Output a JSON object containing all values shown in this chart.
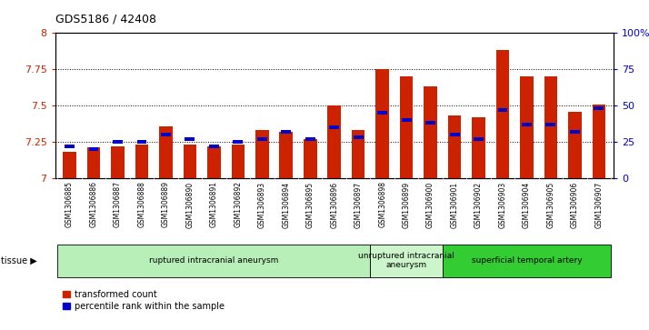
{
  "title": "GDS5186 / 42408",
  "samples": [
    "GSM1306885",
    "GSM1306886",
    "GSM1306887",
    "GSM1306888",
    "GSM1306889",
    "GSM1306890",
    "GSM1306891",
    "GSM1306892",
    "GSM1306893",
    "GSM1306894",
    "GSM1306895",
    "GSM1306896",
    "GSM1306897",
    "GSM1306898",
    "GSM1306899",
    "GSM1306900",
    "GSM1306901",
    "GSM1306902",
    "GSM1306903",
    "GSM1306904",
    "GSM1306905",
    "GSM1306906",
    "GSM1306907"
  ],
  "red_values": [
    7.18,
    7.21,
    7.22,
    7.23,
    7.36,
    7.23,
    7.22,
    7.23,
    7.33,
    7.32,
    7.27,
    7.5,
    7.33,
    7.75,
    7.7,
    7.63,
    7.43,
    7.42,
    7.88,
    7.7,
    7.7,
    7.46,
    7.51
  ],
  "blue_values": [
    22,
    20,
    25,
    25,
    30,
    27,
    22,
    25,
    27,
    32,
    27,
    35,
    28,
    45,
    40,
    38,
    30,
    27,
    47,
    37,
    37,
    32,
    48
  ],
  "ylim_left": [
    7.0,
    8.0
  ],
  "ylim_right": [
    0,
    100
  ],
  "yticks_left": [
    7.0,
    7.25,
    7.5,
    7.75,
    8.0
  ],
  "ytick_labels_left": [
    "7",
    "7.25",
    "7.5",
    "7.75",
    "8"
  ],
  "yticks_right": [
    0,
    25,
    50,
    75,
    100
  ],
  "ytick_labels_right": [
    "0",
    "25",
    "50",
    "75",
    "100%"
  ],
  "groups": [
    {
      "label": "ruptured intracranial aneurysm",
      "start": 0,
      "end": 13,
      "color": "#b8eeb8"
    },
    {
      "label": "unruptured intracranial\naneurysm",
      "start": 13,
      "end": 16,
      "color": "#ccf5cc"
    },
    {
      "label": "superficial temporal artery",
      "start": 16,
      "end": 23,
      "color": "#33cc33"
    }
  ],
  "bar_color_red": "#cc2200",
  "bar_color_blue": "#0000cc",
  "plot_bg": "#ffffff",
  "tick_area_bg": "#d8d8d8",
  "bar_width": 0.55,
  "legend_items": [
    {
      "label": "transformed count",
      "color": "#cc2200"
    },
    {
      "label": "percentile rank within the sample",
      "color": "#0000cc"
    }
  ]
}
